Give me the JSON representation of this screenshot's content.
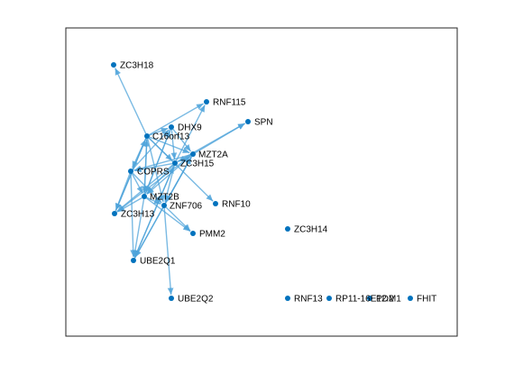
{
  "colors": {
    "edge": "#4DA3DA",
    "node": "#0072BD",
    "axes": "#262626",
    "background": "#FFFFFF",
    "label": "#000000"
  },
  "graph": {
    "type": "directed-network",
    "nodes": [
      {
        "id": "ZC3H18",
        "label": "ZC3H18"
      },
      {
        "id": "RNF115",
        "label": "RNF115"
      },
      {
        "id": "DHX9",
        "label": "DHX9"
      },
      {
        "id": "SPN",
        "label": "SPN"
      },
      {
        "id": "C16orf13",
        "label": "C16orf13"
      },
      {
        "id": "MZT2A",
        "label": "MZT2A"
      },
      {
        "id": "ZC3H15",
        "label": "ZC3H15"
      },
      {
        "id": "COPRS",
        "label": "COPRS"
      },
      {
        "id": "MZT2B",
        "label": "MZT2B"
      },
      {
        "id": "ZNF706",
        "label": "ZNF706"
      },
      {
        "id": "RNF10",
        "label": "RNF10"
      },
      {
        "id": "ZC3H13",
        "label": "ZC3H13"
      },
      {
        "id": "PMM2",
        "label": "PMM2"
      },
      {
        "id": "UBE2Q1",
        "label": "UBE2Q1"
      },
      {
        "id": "UBE2Q2",
        "label": "UBE2Q2"
      },
      {
        "id": "ZC3H14",
        "label": "ZC3H14"
      },
      {
        "id": "RNF13",
        "label": "RNF13"
      },
      {
        "id": "RP11-16E12.2",
        "label": "RP11-16E12.2"
      },
      {
        "id": "PDM1",
        "label": "PDM1"
      },
      {
        "id": "FHIT",
        "label": "FHIT"
      }
    ],
    "edges": [
      [
        "C16orf13",
        "ZC3H18"
      ],
      [
        "C16orf13",
        "RNF115"
      ],
      [
        "C16orf13",
        "DHX9"
      ],
      [
        "C16orf13",
        "MZT2A"
      ],
      [
        "C16orf13",
        "ZC3H15"
      ],
      [
        "C16orf13",
        "COPRS"
      ],
      [
        "C16orf13",
        "MZT2B"
      ],
      [
        "C16orf13",
        "ZNF706"
      ],
      [
        "C16orf13",
        "ZC3H13"
      ],
      [
        "C16orf13",
        "RNF10"
      ],
      [
        "DHX9",
        "MZT2A"
      ],
      [
        "DHX9",
        "ZC3H15"
      ],
      [
        "DHX9",
        "MZT2B"
      ],
      [
        "MZT2A",
        "SPN"
      ],
      [
        "MZT2A",
        "ZC3H15"
      ],
      [
        "MZT2A",
        "MZT2B"
      ],
      [
        "MZT2A",
        "COPRS"
      ],
      [
        "MZT2A",
        "ZNF706"
      ],
      [
        "ZC3H15",
        "MZT2B"
      ],
      [
        "ZC3H15",
        "COPRS"
      ],
      [
        "ZC3H15",
        "ZNF706"
      ],
      [
        "ZC3H15",
        "ZC3H13"
      ],
      [
        "ZC3H15",
        "UBE2Q1"
      ],
      [
        "ZC3H15",
        "RNF115"
      ],
      [
        "ZC3H15",
        "SPN"
      ],
      [
        "COPRS",
        "MZT2B"
      ],
      [
        "COPRS",
        "ZNF706"
      ],
      [
        "COPRS",
        "ZC3H13"
      ],
      [
        "COPRS",
        "UBE2Q1"
      ],
      [
        "COPRS",
        "DHX9"
      ],
      [
        "MZT2B",
        "ZNF706"
      ],
      [
        "MZT2B",
        "ZC3H13"
      ],
      [
        "MZT2B",
        "UBE2Q1"
      ],
      [
        "MZT2B",
        "PMM2"
      ],
      [
        "MZT2B",
        "C16orf13"
      ],
      [
        "MZT2B",
        "DHX9"
      ],
      [
        "ZNF706",
        "UBE2Q1"
      ],
      [
        "ZNF706",
        "UBE2Q2"
      ],
      [
        "ZNF706",
        "PMM2"
      ],
      [
        "ZNF706",
        "MZT2A"
      ],
      [
        "ZC3H13",
        "C16orf13"
      ],
      [
        "ZC3H13",
        "MZT2A"
      ],
      [
        "UBE2Q1",
        "ZC3H15"
      ],
      [
        "UBE2Q1",
        "MZT2A"
      ]
    ]
  }
}
